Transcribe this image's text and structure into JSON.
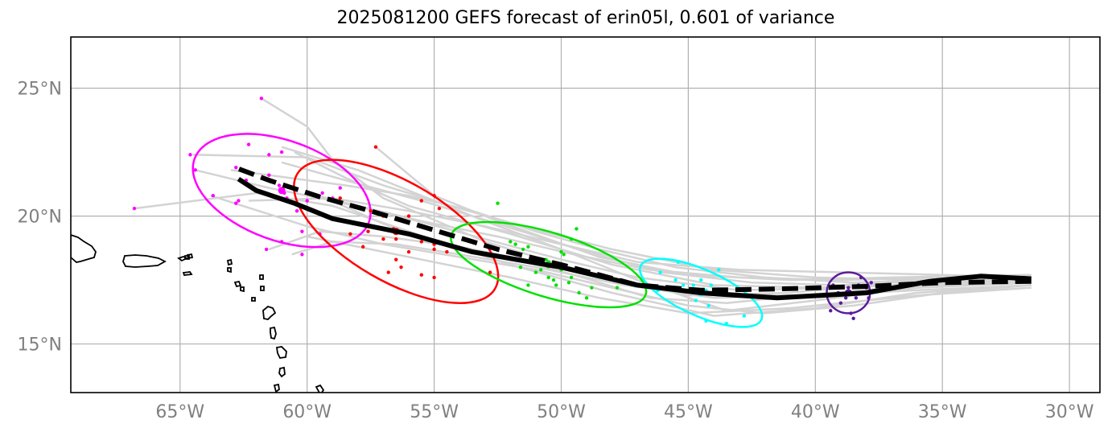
{
  "title": "2025081200 GEFS forecast of erin05l, 0.601 of variance",
  "axes": {
    "lon_ticks": [
      {
        "lon": -65,
        "label": "65°W"
      },
      {
        "lon": -60,
        "label": "60°W"
      },
      {
        "lon": -55,
        "label": "55°W"
      },
      {
        "lon": -50,
        "label": "50°W"
      },
      {
        "lon": -45,
        "label": "45°W"
      },
      {
        "lon": -40,
        "label": "40°W"
      },
      {
        "lon": -35,
        "label": "35°W"
      },
      {
        "lon": -30,
        "label": "30°W"
      }
    ],
    "lat_ticks": [
      {
        "lat": 25,
        "label": "25°N"
      },
      {
        "lat": 20,
        "label": "20°N"
      },
      {
        "lat": 15,
        "label": "15°N"
      }
    ],
    "lon_range": [
      -69.3,
      -28.8
    ],
    "lat_range": [
      13.1,
      27.0
    ],
    "grid": true
  },
  "chart_data": {
    "type": "scatter",
    "colors": {
      "ensemble": "#d3d3d3",
      "mean_track": "#000000",
      "dashed_track": "#000000",
      "land": "#000000",
      "grid": "#b0b0b0",
      "tick_labels": "#808080"
    },
    "mean_track": [
      [
        -31.5,
        17.55
      ],
      [
        -33.5,
        17.65
      ],
      [
        -35.5,
        17.45
      ],
      [
        -38,
        17.0
      ],
      [
        -41.5,
        16.8
      ],
      [
        -44.5,
        17.0
      ],
      [
        -47,
        17.3
      ],
      [
        -50,
        18.0
      ],
      [
        -53.5,
        18.6
      ],
      [
        -56,
        19.3
      ],
      [
        -59,
        19.9
      ],
      [
        -60.5,
        20.5
      ],
      [
        -62,
        21.0
      ],
      [
        -62.7,
        21.45
      ]
    ],
    "dashed_track": [
      [
        -31.5,
        17.45
      ],
      [
        -35,
        17.4
      ],
      [
        -38,
        17.25
      ],
      [
        -41.5,
        17.15
      ],
      [
        -44.5,
        17.1
      ],
      [
        -47,
        17.3
      ],
      [
        -50,
        18.1
      ],
      [
        -52.5,
        18.7
      ],
      [
        -55,
        19.45
      ],
      [
        -57.5,
        20.2
      ],
      [
        -59.5,
        20.75
      ],
      [
        -61.5,
        21.4
      ],
      [
        -62.7,
        21.85
      ]
    ],
    "ensemble_tracks": [
      [
        [
          -31.5,
          17.6
        ],
        [
          -37,
          17.4
        ],
        [
          -41,
          17.0
        ],
        [
          -45,
          16.9
        ],
        [
          -49,
          17.8
        ],
        [
          -53,
          19.0
        ],
        [
          -57,
          20.7
        ],
        [
          -59,
          22.2
        ],
        [
          -60,
          23.5
        ],
        [
          -61.8,
          24.6
        ]
      ],
      [
        [
          -31.5,
          17.5
        ],
        [
          -36,
          17.3
        ],
        [
          -40,
          17.2
        ],
        [
          -44,
          17.3
        ],
        [
          -48,
          18.1
        ],
        [
          -52,
          19.3
        ],
        [
          -56,
          20.4
        ],
        [
          -58.5,
          21.5
        ],
        [
          -60.5,
          22.5
        ]
      ],
      [
        [
          -31.5,
          17.7
        ],
        [
          -37,
          17.6
        ],
        [
          -41,
          17.5
        ],
        [
          -45,
          17.7
        ],
        [
          -48.5,
          18.4
        ],
        [
          -52.5,
          19.8
        ],
        [
          -55,
          20.8
        ],
        [
          -57.3,
          22.7
        ]
      ],
      [
        [
          -31.5,
          17.3
        ],
        [
          -36,
          17.0
        ],
        [
          -40,
          16.4
        ],
        [
          -44,
          16.1
        ],
        [
          -48,
          17.0
        ],
        [
          -52,
          18.1
        ],
        [
          -56,
          19.4
        ],
        [
          -59,
          20.4
        ],
        [
          -62,
          20.9
        ],
        [
          -66.8,
          20.3
        ]
      ],
      [
        [
          -31.5,
          17.4
        ],
        [
          -36,
          17.2
        ],
        [
          -40,
          16.7
        ],
        [
          -43.5,
          16.3
        ],
        [
          -47,
          17.5
        ],
        [
          -50,
          18.7
        ],
        [
          -53,
          19.8
        ],
        [
          -55.5,
          20.8
        ],
        [
          -58,
          21.8
        ],
        [
          -61,
          22.7
        ]
      ],
      [
        [
          -31.5,
          17.5
        ],
        [
          -36,
          17.5
        ],
        [
          -40,
          17.6
        ],
        [
          -44,
          17.9
        ],
        [
          -48,
          18.7
        ],
        [
          -51.5,
          19.6
        ],
        [
          -54,
          20.3
        ],
        [
          -57,
          21.2
        ],
        [
          -60,
          22.3
        ],
        [
          -64.5,
          22.4
        ]
      ],
      [
        [
          -31.5,
          17.6
        ],
        [
          -35,
          17.7
        ],
        [
          -39,
          17.8
        ],
        [
          -43,
          17.9
        ],
        [
          -47,
          18.2
        ],
        [
          -50,
          18.9
        ],
        [
          -53,
          19.6
        ],
        [
          -56,
          20.2
        ],
        [
          -59,
          20.7
        ],
        [
          -62.3,
          20.6
        ]
      ],
      [
        [
          -31.5,
          17.3
        ],
        [
          -36,
          17.1
        ],
        [
          -40,
          16.9
        ],
        [
          -44.5,
          16.9
        ],
        [
          -48,
          17.5
        ],
        [
          -51,
          18.2
        ],
        [
          -54,
          18.8
        ],
        [
          -57,
          19.2
        ],
        [
          -59.5,
          19.4
        ],
        [
          -61.5,
          18.7
        ]
      ],
      [
        [
          -31.5,
          17.2
        ],
        [
          -36,
          16.9
        ],
        [
          -41,
          16.4
        ],
        [
          -45,
          16.2
        ],
        [
          -48.5,
          16.8
        ],
        [
          -52,
          17.6
        ],
        [
          -55,
          18.2
        ],
        [
          -57.5,
          18.7
        ],
        [
          -60,
          19.2
        ]
      ],
      [
        [
          -31.5,
          17.5
        ],
        [
          -35,
          17.4
        ],
        [
          -39,
          17.2
        ],
        [
          -43,
          17.1
        ],
        [
          -47,
          17.6
        ],
        [
          -50,
          18.3
        ],
        [
          -53,
          19.1
        ],
        [
          -56,
          19.9
        ],
        [
          -59,
          20.6
        ],
        [
          -61.5,
          21.1
        ],
        [
          -64.4,
          21.8
        ]
      ],
      [
        [
          -31.5,
          17.6
        ],
        [
          -35,
          17.5
        ],
        [
          -39,
          17.3
        ],
        [
          -42.5,
          17.4
        ],
        [
          -46,
          17.8
        ],
        [
          -49,
          18.6
        ],
        [
          -52.5,
          19.7
        ],
        [
          -55.5,
          20.6
        ],
        [
          -58.5,
          21.4
        ],
        [
          -61,
          22.1
        ]
      ],
      [
        [
          -31.5,
          17.4
        ],
        [
          -36,
          17.2
        ],
        [
          -40,
          16.9
        ],
        [
          -44,
          16.8
        ],
        [
          -47.5,
          17.3
        ],
        [
          -51,
          18.0
        ],
        [
          -54,
          18.5
        ],
        [
          -56.5,
          18.9
        ],
        [
          -59,
          19.0
        ],
        [
          -60.6,
          18.5
        ]
      ],
      [
        [
          -31.5,
          17.5
        ],
        [
          -35,
          17.5
        ],
        [
          -38.5,
          17.4
        ],
        [
          -42,
          17.6
        ],
        [
          -45.5,
          18.0
        ],
        [
          -48.5,
          18.7
        ],
        [
          -51,
          19.4
        ],
        [
          -53.5,
          20.2
        ],
        [
          -56,
          20.8
        ],
        [
          -58.5,
          21.2
        ],
        [
          -63,
          21.8
        ]
      ],
      [
        [
          -31.5,
          17.3
        ],
        [
          -35,
          17.0
        ],
        [
          -38.5,
          16.5
        ],
        [
          -42,
          16.2
        ],
        [
          -45,
          16.5
        ],
        [
          -48,
          17.2
        ],
        [
          -51,
          17.9
        ],
        [
          -54,
          18.4
        ],
        [
          -57,
          18.9
        ],
        [
          -60,
          19.6
        ],
        [
          -63.8,
          20.8
        ]
      ],
      [
        [
          -31.5,
          17.6
        ],
        [
          -35,
          17.6
        ],
        [
          -39,
          17.5
        ],
        [
          -43,
          17.6
        ],
        [
          -46.5,
          17.9
        ],
        [
          -49.5,
          18.5
        ],
        [
          -52.5,
          19.2
        ],
        [
          -55.5,
          19.8
        ],
        [
          -58,
          20.4
        ],
        [
          -60,
          20.9
        ]
      ],
      [
        [
          -31.5,
          17.4
        ],
        [
          -35.5,
          17.3
        ],
        [
          -39.5,
          17.0
        ],
        [
          -43.5,
          16.6
        ],
        [
          -46.5,
          16.8
        ],
        [
          -49.5,
          17.7
        ],
        [
          -52.5,
          18.5
        ],
        [
          -55,
          19.0
        ],
        [
          -57,
          19.7
        ],
        [
          -58.8,
          20.5
        ]
      ]
    ],
    "clusters": [
      {
        "color": "#ff00ff",
        "center": [
          -61.0,
          21.0
        ],
        "ellipse": {
          "rx_deg": 3.65,
          "ry_deg": 1.95,
          "angle": 20
        },
        "points": [
          [
            -62.8,
            21.9
          ],
          [
            -62.6,
            21.8
          ],
          [
            -61.5,
            21.6
          ],
          [
            -61.1,
            21.2
          ],
          [
            -60.9,
            20.9
          ],
          [
            -60.8,
            20.7
          ],
          [
            -60.4,
            20.2
          ],
          [
            -60.0,
            20.6
          ],
          [
            -59.4,
            20.9
          ],
          [
            -59.0,
            20.7
          ],
          [
            -59.5,
            19.3
          ],
          [
            -60.2,
            19.4
          ],
          [
            -61.0,
            19.0
          ],
          [
            -61.6,
            18.7
          ],
          [
            -60.2,
            18.5
          ],
          [
            -62.7,
            20.6
          ],
          [
            -62.8,
            20.5
          ],
          [
            -63.7,
            20.8
          ],
          [
            -64.4,
            21.8
          ],
          [
            -64.6,
            22.4
          ],
          [
            -61.5,
            22.4
          ],
          [
            -61.0,
            22.5
          ],
          [
            -62.3,
            22.8
          ],
          [
            -61.8,
            24.6
          ],
          [
            -66.8,
            20.3
          ],
          [
            -58.7,
            21.1
          ],
          [
            -62.4,
            21.4
          ]
        ]
      },
      {
        "color": "#ff0000",
        "center": [
          -56.5,
          19.4
        ],
        "ellipse": {
          "rx_deg": 4.5,
          "ry_deg": 1.95,
          "angle": 30
        },
        "points": [
          [
            -57.5,
            20.2
          ],
          [
            -56.4,
            19.4
          ],
          [
            -57.3,
            22.7
          ],
          [
            -57.0,
            20.0
          ],
          [
            -56.0,
            20.0
          ],
          [
            -55.5,
            20.6
          ],
          [
            -55.0,
            20.8
          ],
          [
            -54.8,
            20.3
          ],
          [
            -56.5,
            19.1
          ],
          [
            -56.0,
            19.3
          ],
          [
            -55.5,
            19.0
          ],
          [
            -55.0,
            18.9
          ],
          [
            -55.0,
            18.7
          ],
          [
            -54.5,
            18.6
          ],
          [
            -56.0,
            18.6
          ],
          [
            -56.5,
            18.3
          ],
          [
            -56.3,
            18.0
          ],
          [
            -56.8,
            17.8
          ],
          [
            -55.5,
            17.7
          ],
          [
            -55.0,
            17.6
          ],
          [
            -57.0,
            19.1
          ],
          [
            -57.6,
            19.4
          ],
          [
            -58.7,
            20.7
          ],
          [
            -58.3,
            19.3
          ],
          [
            -57.8,
            18.8
          ],
          [
            -52.8,
            17.8
          ],
          [
            -56.6,
            19.5
          ]
        ]
      },
      {
        "color": "#00e000",
        "center": [
          -50.5,
          18.1
        ],
        "ellipse": {
          "rx_deg": 4.0,
          "ry_deg": 1.25,
          "angle": 17
        },
        "points": [
          [
            -51.5,
            18.7
          ],
          [
            -50.5,
            18.2
          ],
          [
            -52.5,
            20.5
          ],
          [
            -52.0,
            19.0
          ],
          [
            -51.8,
            18.9
          ],
          [
            -51.3,
            18.8
          ],
          [
            -50.0,
            18.6
          ],
          [
            -49.9,
            18.5
          ],
          [
            -49.6,
            19.1
          ],
          [
            -49.4,
            19.5
          ],
          [
            -50.8,
            17.9
          ],
          [
            -50.5,
            17.6
          ],
          [
            -50.0,
            17.9
          ],
          [
            -49.6,
            17.6
          ],
          [
            -49.7,
            17.4
          ],
          [
            -50.3,
            17.5
          ],
          [
            -50.2,
            17.3
          ],
          [
            -51.0,
            17.8
          ],
          [
            -51.3,
            17.3
          ],
          [
            -51.6,
            18.0
          ],
          [
            -48.8,
            17.2
          ],
          [
            -49.0,
            16.8
          ],
          [
            -48.5,
            17.7
          ],
          [
            -47.8,
            17.2
          ],
          [
            -49.3,
            17.0
          ],
          [
            -50.6,
            18.3
          ]
        ]
      },
      {
        "color": "#00ffff",
        "center": [
          -44.5,
          17.0
        ],
        "ellipse": {
          "rx_deg": 2.6,
          "ry_deg": 0.9,
          "angle": 24
        },
        "points": [
          [
            -44.5,
            17.0
          ],
          [
            -44.3,
            17.1
          ],
          [
            -43.9,
            17.1
          ],
          [
            -43.5,
            17.0
          ],
          [
            -44.1,
            17.3
          ],
          [
            -44.5,
            17.5
          ],
          [
            -44.8,
            17.3
          ],
          [
            -45.2,
            17.3
          ],
          [
            -45.5,
            17.5
          ],
          [
            -45.8,
            17.2
          ],
          [
            -44.6,
            17.0
          ],
          [
            -44.7,
            16.7
          ],
          [
            -44.2,
            16.5
          ],
          [
            -45.4,
            18.2
          ],
          [
            -43.8,
            17.9
          ],
          [
            -44.3,
            15.9
          ],
          [
            -43.5,
            15.8
          ],
          [
            -42.8,
            16.1
          ],
          [
            -46.2,
            17.1
          ],
          [
            -46.1,
            17.8
          ]
        ]
      },
      {
        "color": "#5c1a9c",
        "center": [
          -38.7,
          17.0
        ],
        "ellipse": {
          "rx_deg": 0.85,
          "ry_deg": 0.8,
          "angle": 0
        },
        "points": [
          [
            -38.7,
            17.2
          ],
          [
            -38.6,
            17.0
          ],
          [
            -38.3,
            17.3
          ],
          [
            -38.0,
            17.2
          ],
          [
            -37.8,
            17.4
          ],
          [
            -37.9,
            16.8
          ],
          [
            -38.4,
            16.8
          ],
          [
            -38.8,
            16.8
          ],
          [
            -39.1,
            17.0
          ],
          [
            -39.0,
            16.6
          ],
          [
            -38.5,
            16.0
          ],
          [
            -38.6,
            16.2
          ],
          [
            -39.3,
            17.3
          ],
          [
            -38.2,
            17.6
          ],
          [
            -39.4,
            16.3
          ],
          [
            -37.9,
            17.0
          ]
        ]
      }
    ]
  }
}
